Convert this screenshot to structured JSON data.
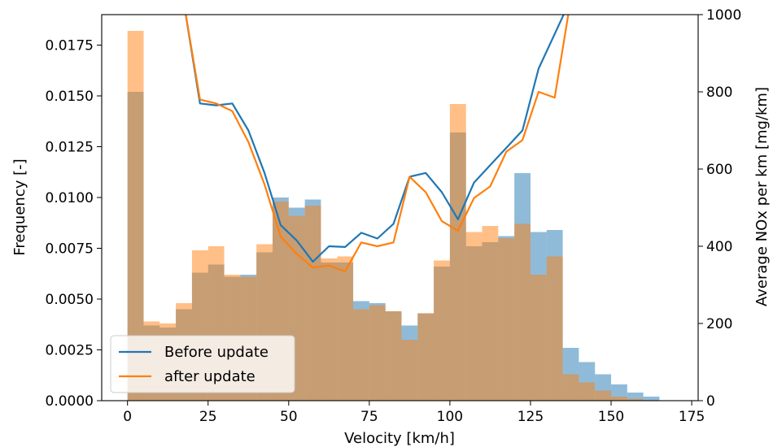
{
  "chart_data": {
    "type": "bar",
    "xlabel": "Velocity [km/h]",
    "ylabel": "Frequency [-]",
    "y2label": "Average NOx per km [mg/km]",
    "xlim": [
      -8,
      177
    ],
    "ylim": [
      0,
      0.019
    ],
    "y2lim": [
      0,
      1000
    ],
    "x_ticks": [
      0,
      25,
      50,
      75,
      100,
      125,
      150,
      175
    ],
    "y_ticks": [
      0.0,
      0.0025,
      0.005,
      0.0075,
      0.01,
      0.0125,
      0.015,
      0.0175
    ],
    "y_tick_labels": [
      "0.0000",
      "0.0025",
      "0.0050",
      "0.0075",
      "0.0100",
      "0.0125",
      "0.0150",
      "0.0175"
    ],
    "y2_ticks": [
      0,
      200,
      400,
      600,
      800,
      1000
    ],
    "y2_tick_labels": [
      "0",
      "200",
      "400",
      "600",
      "800",
      "1000"
    ],
    "grid": false,
    "legend_position": "bottom-left",
    "bin_edges": [
      0,
      5,
      10,
      15,
      20,
      25,
      30,
      35,
      40,
      45,
      50,
      55,
      60,
      65,
      70,
      75,
      80,
      85,
      90,
      95,
      100,
      105,
      110,
      115,
      120,
      125,
      130,
      135,
      140,
      145,
      150,
      155,
      160,
      165
    ],
    "histograms": [
      {
        "name": "Before update",
        "color": "#1f77b4",
        "values": [
          0.0152,
          0.0037,
          0.0036,
          0.0045,
          0.0063,
          0.0067,
          0.0061,
          0.0062,
          0.0073,
          0.01,
          0.0095,
          0.0099,
          0.0068,
          0.0068,
          0.0049,
          0.0048,
          0.0044,
          0.0037,
          0.0043,
          0.0066,
          0.0132,
          0.0076,
          0.0078,
          0.0081,
          0.0112,
          0.0083,
          0.0084,
          0.0026,
          0.0019,
          0.0013,
          0.0008,
          0.0004,
          0.0002
        ]
      },
      {
        "name": "after update",
        "color": "#ff7f0e",
        "values": [
          0.0182,
          0.0039,
          0.0038,
          0.0048,
          0.0074,
          0.0076,
          0.0062,
          0.0061,
          0.0077,
          0.0098,
          0.0091,
          0.0096,
          0.007,
          0.0071,
          0.0045,
          0.0047,
          0.0044,
          0.003,
          0.0043,
          0.0069,
          0.0146,
          0.0083,
          0.0086,
          0.008,
          0.0087,
          0.0062,
          0.0071,
          0.0013,
          0.0009,
          0.0005,
          0.0002,
          0.0001,
          0.0
        ]
      }
    ],
    "lines": [
      {
        "name": "Before update",
        "color": "#1f77b4",
        "x": [
          17.5,
          22.5,
          27.5,
          32.5,
          37.5,
          42.5,
          47.5,
          52.5,
          57.5,
          62.5,
          67.5,
          72.5,
          77.5,
          82.5,
          87.5,
          92.5,
          97.5,
          102.5,
          107.5,
          112.5,
          117.5,
          122.5,
          127.5,
          132.5,
          137.5
        ],
        "y": [
          1030,
          770,
          765,
          770,
          700,
          590,
          455,
          415,
          360,
          400,
          398,
          435,
          420,
          458,
          580,
          590,
          540,
          470,
          565,
          610,
          655,
          700,
          860,
          950,
          1040
        ]
      },
      {
        "name": "after update",
        "color": "#ff7f0e",
        "x": [
          17.5,
          22.5,
          27.5,
          32.5,
          37.5,
          42.5,
          47.5,
          52.5,
          57.5,
          62.5,
          67.5,
          72.5,
          77.5,
          82.5,
          87.5,
          92.5,
          97.5,
          102.5,
          107.5,
          112.5,
          117.5,
          122.5,
          127.5,
          132.5,
          137.5
        ],
        "y": [
          1030,
          780,
          770,
          750,
          670,
          560,
          425,
          380,
          345,
          350,
          335,
          410,
          400,
          410,
          580,
          540,
          465,
          440,
          525,
          555,
          645,
          675,
          800,
          785,
          1040
        ]
      }
    ]
  }
}
